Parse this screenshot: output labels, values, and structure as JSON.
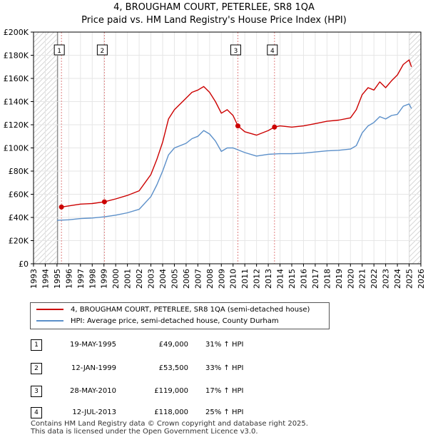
{
  "title_line1": "4, BROUGHAM COURT, PETERLEE, SR8 1QA",
  "title_line2": "Price paid vs. HM Land Registry's House Price Index (HPI)",
  "legend": {
    "property_label": "4, BROUGHAM COURT, PETERLEE, SR8 1QA (semi-detached house)",
    "hpi_label": "HPI: Average price, semi-detached house, County Durham",
    "property_color": "#cc0000",
    "hpi_color": "#5b8fc9"
  },
  "sales": [
    {
      "num": "1",
      "date": "19-MAY-1995",
      "price": "£49,000",
      "hpi": "31% ↑ HPI"
    },
    {
      "num": "2",
      "date": "12-JAN-1999",
      "price": "£53,500",
      "hpi": "33% ↑ HPI"
    },
    {
      "num": "3",
      "date": "28-MAY-2010",
      "price": "£119,000",
      "hpi": "17% ↑ HPI"
    },
    {
      "num": "4",
      "date": "12-JUL-2013",
      "price": "£118,000",
      "hpi": "25% ↑ HPI"
    }
  ],
  "footer_line1": "Contains HM Land Registry data © Crown copyright and database right 2025.",
  "footer_line2": "This data is licensed under the Open Government Licence v3.0.",
  "chart_data": {
    "type": "line",
    "xlim": [
      1993,
      2026
    ],
    "ylim": [
      0,
      200000
    ],
    "x_ticks": [
      1993,
      1994,
      1995,
      1996,
      1997,
      1998,
      1999,
      2000,
      2001,
      2002,
      2003,
      2004,
      2005,
      2006,
      2007,
      2008,
      2009,
      2010,
      2011,
      2012,
      2013,
      2014,
      2015,
      2016,
      2017,
      2018,
      2019,
      2020,
      2021,
      2022,
      2023,
      2024,
      2025,
      2026
    ],
    "y_ticks": [
      0,
      20000,
      40000,
      60000,
      80000,
      100000,
      120000,
      140000,
      160000,
      180000,
      200000
    ],
    "y_tick_labels": [
      "£0",
      "£20K",
      "£40K",
      "£60K",
      "£80K",
      "£100K",
      "£120K",
      "£140K",
      "£160K",
      "£180K",
      "£200K"
    ],
    "hatched_ranges": [
      [
        1993,
        1995.05
      ],
      [
        2025.0,
        2026
      ]
    ],
    "series": [
      {
        "name": "4, BROUGHAM COURT, PETERLEE, SR8 1QA (semi-detached house)",
        "color": "#cc0000",
        "x": [
          1995.38,
          1996,
          1997,
          1998,
          1999.04,
          2000,
          2001,
          2002,
          2003,
          2003.5,
          2004,
          2004.5,
          2005,
          2006,
          2006.5,
          2007,
          2007.5,
          2008,
          2008.5,
          2009,
          2009.5,
          2010,
          2010.41,
          2011,
          2012,
          2013,
          2013.53,
          2014,
          2015,
          2016,
          2017,
          2018,
          2019,
          2020,
          2020.5,
          2021,
          2021.5,
          2022,
          2022.5,
          2023,
          2023.5,
          2024,
          2024.5,
          2025,
          2025.2
        ],
        "y": [
          49000,
          50000,
          51500,
          52000,
          53500,
          56000,
          59000,
          63000,
          77000,
          90000,
          105000,
          125000,
          133000,
          143000,
          148000,
          150000,
          153000,
          148000,
          140000,
          130000,
          133000,
          128000,
          119000,
          114000,
          111000,
          115000,
          118000,
          119000,
          118000,
          119000,
          121000,
          123000,
          124000,
          126000,
          133000,
          146000,
          152000,
          150000,
          157000,
          152000,
          158000,
          163000,
          172000,
          176000,
          170000
        ]
      },
      {
        "name": "HPI: Average price, semi-detached house, County Durham",
        "color": "#5b8fc9",
        "x": [
          1995,
          1996,
          1997,
          1998,
          1999,
          2000,
          2001,
          2002,
          2003,
          2003.5,
          2004,
          2004.5,
          2005,
          2006,
          2006.5,
          2007,
          2007.5,
          2008,
          2008.5,
          2009,
          2009.5,
          2010,
          2011,
          2012,
          2013,
          2014,
          2015,
          2016,
          2017,
          2018,
          2019,
          2020,
          2020.5,
          2021,
          2021.5,
          2022,
          2022.5,
          2023,
          2023.5,
          2024,
          2024.5,
          2025,
          2025.2
        ],
        "y": [
          37500,
          38000,
          39000,
          39500,
          40500,
          42000,
          44000,
          47000,
          58000,
          68000,
          80000,
          94000,
          100000,
          104000,
          108000,
          110000,
          115000,
          112000,
          106000,
          97000,
          100000,
          100000,
          96000,
          93000,
          94500,
          95000,
          95000,
          95500,
          96500,
          97500,
          98000,
          99000,
          102000,
          113000,
          119000,
          122000,
          127000,
          125000,
          128000,
          129000,
          136000,
          138000,
          134000
        ]
      }
    ],
    "markers": [
      {
        "label": "1",
        "x": 1995.38,
        "y": 49000
      },
      {
        "label": "2",
        "x": 1999.04,
        "y": 53500
      },
      {
        "label": "3",
        "x": 2010.41,
        "y": 119000
      },
      {
        "label": "4",
        "x": 2013.53,
        "y": 118000
      }
    ]
  }
}
